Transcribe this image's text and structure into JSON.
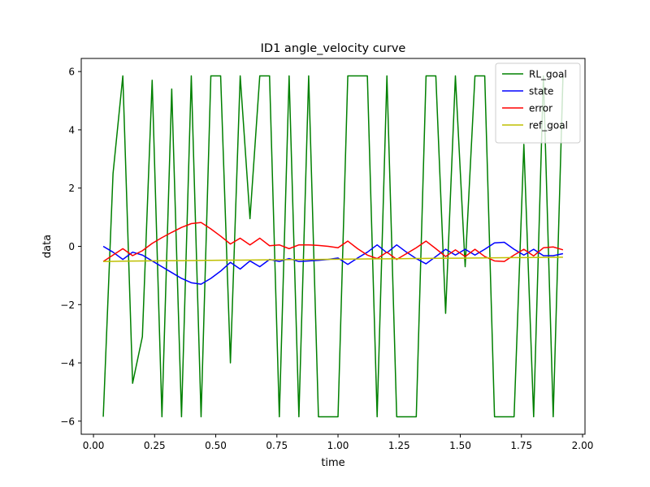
{
  "chart_data": {
    "type": "line",
    "title": "ID1 angle_velocity curve",
    "xlabel": "time",
    "ylabel": "data",
    "xlim": [
      -0.05,
      2.01
    ],
    "ylim": [
      -6.45,
      6.45
    ],
    "xticks": [
      0.0,
      0.25,
      0.5,
      0.75,
      1.0,
      1.25,
      1.5,
      1.75,
      2.0
    ],
    "xtick_labels": [
      "0.00",
      "0.25",
      "0.50",
      "0.75",
      "1.00",
      "1.25",
      "1.50",
      "1.75",
      "2.00"
    ],
    "yticks": [
      -6,
      -4,
      -2,
      0,
      2,
      4,
      6
    ],
    "ytick_labels": [
      "−6",
      "−4",
      "−2",
      "0",
      "2",
      "4",
      "6"
    ],
    "grid": false,
    "legend_position": "upper-right",
    "x": [
      0.04,
      0.08,
      0.12,
      0.16,
      0.2,
      0.24,
      0.28,
      0.32,
      0.36,
      0.4,
      0.44,
      0.48,
      0.52,
      0.56,
      0.6,
      0.64,
      0.68,
      0.72,
      0.76,
      0.8,
      0.84,
      0.88,
      0.92,
      0.96,
      1.0,
      1.04,
      1.08,
      1.12,
      1.16,
      1.2,
      1.24,
      1.28,
      1.32,
      1.36,
      1.4,
      1.44,
      1.48,
      1.52,
      1.56,
      1.6,
      1.64,
      1.68,
      1.72,
      1.76,
      1.8,
      1.84,
      1.88,
      1.92
    ],
    "series": [
      {
        "name": "RL_goal",
        "color": "#008000",
        "values": [
          -5.85,
          2.5,
          5.85,
          -4.7,
          -3.1,
          5.7,
          -5.85,
          5.4,
          -5.85,
          5.85,
          -5.85,
          5.85,
          5.85,
          -4.0,
          5.85,
          0.95,
          5.85,
          5.85,
          -5.85,
          5.85,
          -5.85,
          5.85,
          -5.85,
          -5.85,
          -5.85,
          5.85,
          5.85,
          5.85,
          -5.85,
          5.85,
          -5.85,
          -5.85,
          -5.85,
          5.85,
          5.85,
          -2.3,
          5.85,
          -0.7,
          5.85,
          5.85,
          -5.85,
          -5.85,
          -5.85,
          3.5,
          -5.85,
          5.85,
          -5.85,
          5.85
        ]
      },
      {
        "name": "state",
        "color": "#0000ff",
        "values": [
          0.0,
          -0.2,
          -0.45,
          -0.2,
          -0.3,
          -0.5,
          -0.7,
          -0.9,
          -1.1,
          -1.25,
          -1.3,
          -1.1,
          -0.85,
          -0.55,
          -0.78,
          -0.5,
          -0.7,
          -0.45,
          -0.52,
          -0.42,
          -0.52,
          -0.5,
          -0.48,
          -0.45,
          -0.4,
          -0.62,
          -0.4,
          -0.2,
          0.05,
          -0.22,
          0.05,
          -0.2,
          -0.42,
          -0.6,
          -0.35,
          -0.1,
          -0.3,
          -0.1,
          -0.3,
          -0.1,
          0.12,
          0.14,
          -0.1,
          -0.3,
          -0.1,
          -0.32,
          -0.32,
          -0.25
        ]
      },
      {
        "name": "error",
        "color": "#ff0000",
        "values": [
          -0.52,
          -0.3,
          -0.08,
          -0.32,
          -0.15,
          0.1,
          0.3,
          0.48,
          0.65,
          0.78,
          0.82,
          0.6,
          0.35,
          0.08,
          0.28,
          0.05,
          0.28,
          0.02,
          0.05,
          -0.08,
          0.05,
          0.05,
          0.03,
          0.0,
          -0.05,
          0.18,
          -0.08,
          -0.3,
          -0.42,
          -0.2,
          -0.45,
          -0.25,
          -0.05,
          0.18,
          -0.08,
          -0.35,
          -0.12,
          -0.35,
          -0.1,
          -0.35,
          -0.5,
          -0.52,
          -0.3,
          -0.1,
          -0.33,
          -0.05,
          -0.02,
          -0.12
        ]
      },
      {
        "name": "ref_goal",
        "color": "#bfbf00",
        "values": [
          -0.52,
          -0.515,
          -0.51,
          -0.505,
          -0.5,
          -0.498,
          -0.495,
          -0.492,
          -0.49,
          -0.487,
          -0.484,
          -0.481,
          -0.478,
          -0.475,
          -0.472,
          -0.469,
          -0.466,
          -0.463,
          -0.46,
          -0.457,
          -0.454,
          -0.451,
          -0.448,
          -0.445,
          -0.442,
          -0.439,
          -0.436,
          -0.433,
          -0.43,
          -0.427,
          -0.424,
          -0.421,
          -0.418,
          -0.415,
          -0.412,
          -0.409,
          -0.406,
          -0.403,
          -0.4,
          -0.397,
          -0.394,
          -0.391,
          -0.388,
          -0.385,
          -0.382,
          -0.379,
          -0.376,
          -0.373
        ]
      }
    ]
  }
}
